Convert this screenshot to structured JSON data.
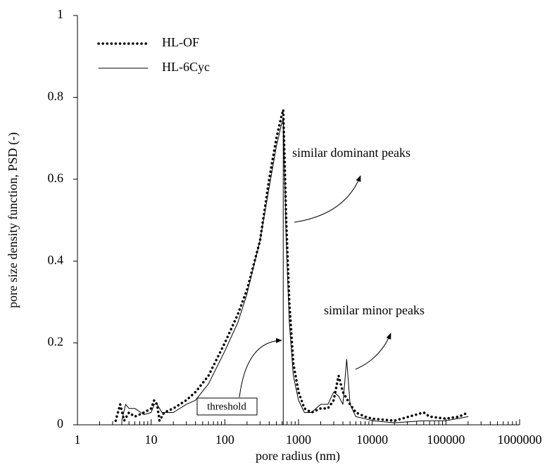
{
  "chart_data": {
    "type": "line",
    "x_label": "pore radius (nm)",
    "y_label": "pore size density function, PSD (-)",
    "xlim": [
      1,
      1000000
    ],
    "xticks": [
      1,
      10,
      100,
      1000,
      10000,
      100000,
      1000000
    ],
    "xscale": "log",
    "ylim": [
      0,
      1
    ],
    "yticks": [
      0,
      0.2,
      0.4,
      0.6,
      0.8,
      1
    ],
    "legend": "top-left",
    "annotations": [
      "similar dominant peaks",
      "similar minor peaks",
      "threshold"
    ],
    "series": [
      {
        "name": "HL-OF",
        "color": "#000000",
        "style": "dotted",
        "x": [
          3.3,
          3.8,
          4.3,
          5,
          6,
          8,
          10,
          11,
          12,
          13,
          15,
          20,
          30,
          40,
          60,
          100,
          150,
          200,
          300,
          400,
          500,
          580,
          620,
          680,
          750,
          850,
          1000,
          1200,
          1500,
          2000,
          2500,
          3000,
          3500,
          4000,
          5000,
          6000,
          8000,
          10000,
          20000,
          50000,
          60000,
          100000,
          150000,
          200000
        ],
        "values": [
          0.01,
          0.05,
          0.01,
          0.03,
          0.02,
          0.03,
          0.04,
          0.06,
          0.05,
          0.01,
          0.03,
          0.04,
          0.06,
          0.08,
          0.12,
          0.2,
          0.27,
          0.33,
          0.45,
          0.6,
          0.7,
          0.75,
          0.77,
          0.5,
          0.3,
          0.15,
          0.08,
          0.04,
          0.03,
          0.04,
          0.04,
          0.06,
          0.12,
          0.08,
          0.05,
          0.03,
          0.02,
          0.015,
          0.01,
          0.03,
          0.02,
          0.015,
          0.02,
          0.03
        ]
      },
      {
        "name": "HL-6Cyc",
        "color": "#000000",
        "style": "solid",
        "x": [
          4,
          4.5,
          5,
          6,
          8,
          10,
          11,
          12,
          14,
          20,
          30,
          40,
          60,
          100,
          150,
          200,
          300,
          400,
          500,
          580,
          620,
          680,
          750,
          850,
          1000,
          1200,
          1500,
          2000,
          2500,
          3000,
          3500,
          4000,
          4500,
          5000,
          6000,
          8000,
          10000,
          20000,
          50000,
          100000,
          200000
        ],
        "values": [
          0.01,
          0.05,
          0.04,
          0.04,
          0.025,
          0.03,
          0.05,
          0.05,
          0.03,
          0.03,
          0.05,
          0.06,
          0.1,
          0.18,
          0.25,
          0.32,
          0.45,
          0.58,
          0.68,
          0.73,
          0.75,
          0.45,
          0.25,
          0.12,
          0.06,
          0.03,
          0.03,
          0.05,
          0.05,
          0.08,
          0.07,
          0.05,
          0.16,
          0.05,
          0.02,
          0.015,
          0.01,
          0.005,
          0.01,
          0.01,
          0.02
        ]
      }
    ]
  }
}
